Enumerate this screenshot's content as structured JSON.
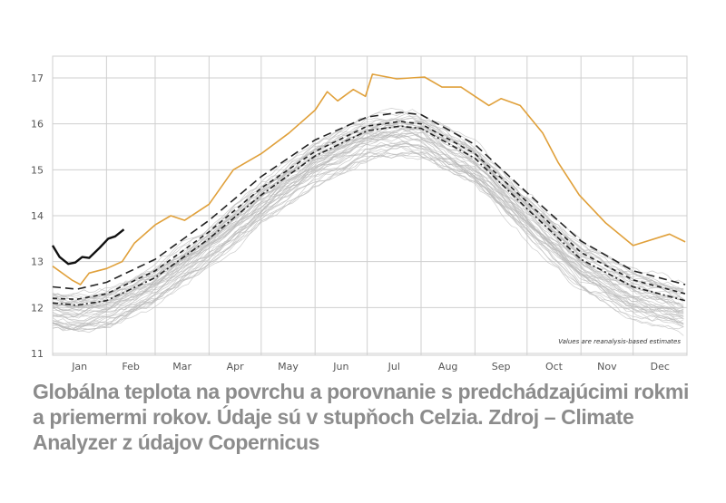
{
  "chart_data": {
    "type": "line",
    "title": "",
    "xlabel": "",
    "ylabel": "",
    "ylim": [
      11,
      17.47
    ],
    "y_ticks": [
      "11",
      "12",
      "13",
      "14",
      "15",
      "16",
      "17"
    ],
    "x_ticks": [
      "Jan",
      "Feb",
      "Mar",
      "Apr",
      "May",
      "Jun",
      "Jul",
      "Aug",
      "Sep",
      "Oct",
      "Nov",
      "Dec"
    ],
    "grid": true,
    "legend": "none",
    "annotation": "Values are reanalysis-based estimates",
    "colors": {
      "highlight_year": "#e0a03a",
      "current_year": "#111111",
      "background_years": "#b8b8b8",
      "mean_lines": "#222222",
      "grid": "#cfcfcf"
    },
    "series": [
      {
        "style": "orange-solid",
        "points": [
          [
            "Jan 1",
            12.9
          ],
          [
            "Jan 12",
            12.6
          ],
          [
            "Jan 17",
            12.5
          ],
          [
            "Jan 22",
            12.75
          ],
          [
            "Feb 1",
            12.85
          ],
          [
            "Feb 10",
            13.0
          ],
          [
            "Feb 17",
            13.4
          ],
          [
            "Mar 1",
            13.8
          ],
          [
            "Mar 10",
            14.0
          ],
          [
            "Mar 18",
            13.9
          ],
          [
            "Apr 1",
            14.25
          ],
          [
            "Apr 15",
            15.0
          ],
          [
            "May 1",
            15.35
          ],
          [
            "May 17",
            15.8
          ],
          [
            "Jun 1",
            16.3
          ],
          [
            "Jun 8",
            16.7
          ],
          [
            "Jun 14",
            16.5
          ],
          [
            "Jun 23",
            16.75
          ],
          [
            "Jun 30",
            16.6
          ],
          [
            "Jul 4",
            17.08
          ],
          [
            "Jul 18",
            16.98
          ],
          [
            "Aug 3",
            17.02
          ],
          [
            "Aug 13",
            16.8
          ],
          [
            "Aug 24",
            16.8
          ],
          [
            "Sep 1",
            16.6
          ],
          [
            "Sep 9",
            16.4
          ],
          [
            "Sep 16",
            16.55
          ],
          [
            "Sep 27",
            16.4
          ],
          [
            "Oct 10",
            15.8
          ],
          [
            "Oct 19",
            15.15
          ],
          [
            "Oct 31",
            14.45
          ],
          [
            "Nov 15",
            13.85
          ],
          [
            "Dec 1",
            13.35
          ],
          [
            "Dec 22",
            13.6
          ],
          [
            "Dec 31",
            13.43
          ]
        ]
      },
      {
        "style": "black-solid",
        "points": [
          [
            "Jan 1",
            13.35
          ],
          [
            "Jan 5",
            13.1
          ],
          [
            "Jan 10",
            12.95
          ],
          [
            "Jan 14",
            12.98
          ],
          [
            "Jan 18",
            13.1
          ],
          [
            "Jan 22",
            13.08
          ],
          [
            "Jan 28",
            13.3
          ],
          [
            "Feb 2",
            13.5
          ],
          [
            "Feb 6",
            13.55
          ],
          [
            "Feb 11",
            13.7
          ]
        ]
      },
      {
        "style": "long-dash",
        "points": [
          [
            "Jan 1",
            12.45
          ],
          [
            "Jan 15",
            12.4
          ],
          [
            "Feb 1",
            12.55
          ],
          [
            "Mar 1",
            13.05
          ],
          [
            "Apr 1",
            13.9
          ],
          [
            "May 1",
            14.85
          ],
          [
            "Jun 1",
            15.65
          ],
          [
            "Jul 1",
            16.15
          ],
          [
            "Jul 20",
            16.25
          ],
          [
            "Aug 1",
            16.2
          ],
          [
            "Sep 1",
            15.55
          ],
          [
            "Oct 1",
            14.5
          ],
          [
            "Nov 1",
            13.45
          ],
          [
            "Dec 1",
            12.8
          ],
          [
            "Dec 31",
            12.5
          ]
        ]
      },
      {
        "style": "short-dash",
        "points": [
          [
            "Jan 1",
            12.2
          ],
          [
            "Jan 15",
            12.18
          ],
          [
            "Feb 1",
            12.3
          ],
          [
            "Mar 1",
            12.8
          ],
          [
            "Apr 1",
            13.65
          ],
          [
            "May 1",
            14.6
          ],
          [
            "Jun 1",
            15.4
          ],
          [
            "Jul 1",
            15.95
          ],
          [
            "Jul 20",
            16.05
          ],
          [
            "Aug 1",
            16.0
          ],
          [
            "Sep 1",
            15.35
          ],
          [
            "Oct 1",
            14.3
          ],
          [
            "Nov 1",
            13.2
          ],
          [
            "Dec 1",
            12.6
          ],
          [
            "Dec 31",
            12.3
          ]
        ]
      },
      {
        "style": "dash-dot",
        "points": [
          [
            "Jan 1",
            12.1
          ],
          [
            "Jan 15",
            12.05
          ],
          [
            "Feb 1",
            12.15
          ],
          [
            "Mar 1",
            12.65
          ],
          [
            "Apr 1",
            13.5
          ],
          [
            "May 1",
            14.45
          ],
          [
            "Jun 1",
            15.3
          ],
          [
            "Jul 1",
            15.85
          ],
          [
            "Jul 20",
            15.95
          ],
          [
            "Aug 1",
            15.9
          ],
          [
            "Sep 1",
            15.25
          ],
          [
            "Oct 1",
            14.15
          ],
          [
            "Nov 1",
            13.05
          ],
          [
            "Dec 1",
            12.45
          ],
          [
            "Dec 31",
            12.15
          ]
        ]
      }
    ]
  },
  "caption": "Globálna teplota na povrchu a porovnanie s predchádzajúcimi rokmi a priemermi rokov. Údaje sú v stupňoch Celzia. Zdroj – Climate Analyzer z údajov Copernicus"
}
